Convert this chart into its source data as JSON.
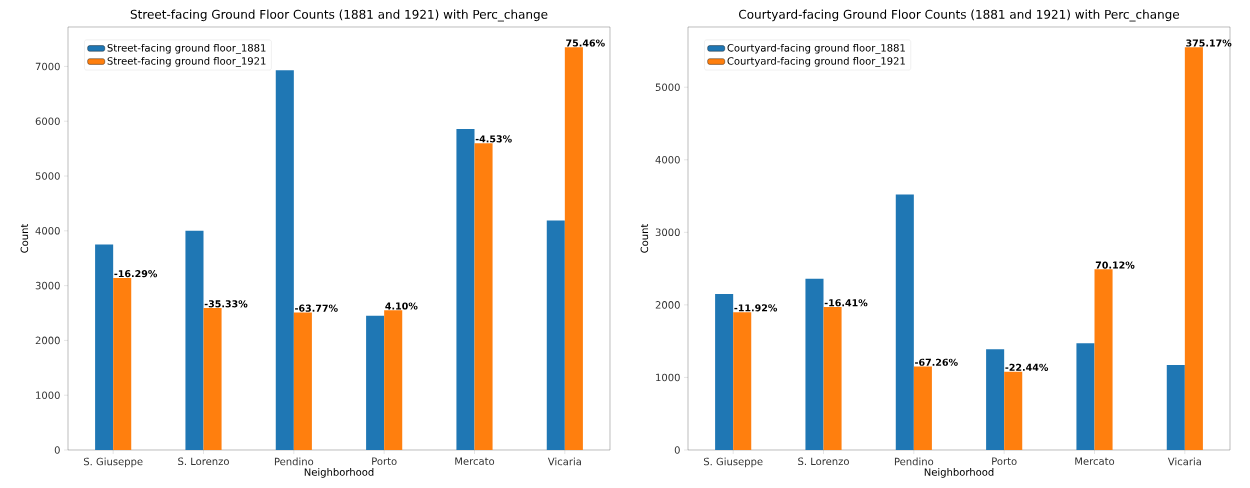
{
  "chart_data": [
    {
      "type": "bar",
      "title": "Street-facing Ground Floor Counts (1881 and 1921) with Perc_change",
      "xlabel": "Neighborhood",
      "ylabel": "Count",
      "categories": [
        "S. Giuseppe",
        "S. Lorenzo",
        "Pendino",
        "Porto",
        "Mercato",
        "Vicaria"
      ],
      "series": [
        {
          "name": "Street-facing ground floor_1881",
          "color": "#1f77b4",
          "values": [
            3750,
            4000,
            6930,
            2450,
            5860,
            4190
          ]
        },
        {
          "name": "Street-facing ground floor_1921",
          "color": "#ff7f0e",
          "values": [
            3140,
            2590,
            2510,
            2550,
            5600,
            7350
          ]
        }
      ],
      "annotations": [
        {
          "text": "-16.29%",
          "x": "S. Giuseppe",
          "y": 3140
        },
        {
          "text": "-35.33%",
          "x": "S. Lorenzo",
          "y": 2590
        },
        {
          "text": "-63.77%",
          "x": "Pendino",
          "y": 2510
        },
        {
          "text": "4.10%",
          "x": "Porto",
          "y": 2550
        },
        {
          "text": "-4.53%",
          "x": "Mercato",
          "y": 5600
        },
        {
          "text": "75.46%",
          "x": "Vicaria",
          "y": 7350
        }
      ],
      "ylim": [
        0,
        7720
      ],
      "yticks": [
        0,
        1000,
        2000,
        3000,
        4000,
        5000,
        6000,
        7000
      ],
      "legend": "top left"
    },
    {
      "type": "bar",
      "title": "Courtyard-facing Ground Floor Counts (1881 and 1921) with Perc_change",
      "xlabel": "Neighborhood",
      "ylabel": "Count",
      "categories": [
        "S. Giuseppe",
        "S. Lorenzo",
        "Pendino",
        "Porto",
        "Mercato",
        "Vicaria"
      ],
      "series": [
        {
          "name": "Courtyard-facing ground floor_1881",
          "color": "#1f77b4",
          "values": [
            2150,
            2360,
            3520,
            1390,
            1470,
            1170
          ]
        },
        {
          "name": "Courtyard-facing ground floor_1921",
          "color": "#ff7f0e",
          "values": [
            1900,
            1970,
            1150,
            1080,
            2490,
            5550
          ]
        }
      ],
      "annotations": [
        {
          "text": "-11.92%",
          "x": "S. Giuseppe",
          "y": 1900
        },
        {
          "text": "-16.41%",
          "x": "S. Lorenzo",
          "y": 1970
        },
        {
          "text": "-67.26%",
          "x": "Pendino",
          "y": 1150
        },
        {
          "text": "-22.44%",
          "x": "Porto",
          "y": 1080
        },
        {
          "text": "70.12%",
          "x": "Mercato",
          "y": 2490
        },
        {
          "text": "375.17%",
          "x": "Vicaria",
          "y": 5550
        }
      ],
      "ylim": [
        0,
        5830
      ],
      "yticks": [
        0,
        1000,
        2000,
        3000,
        4000,
        5000
      ],
      "legend": "top left"
    }
  ]
}
